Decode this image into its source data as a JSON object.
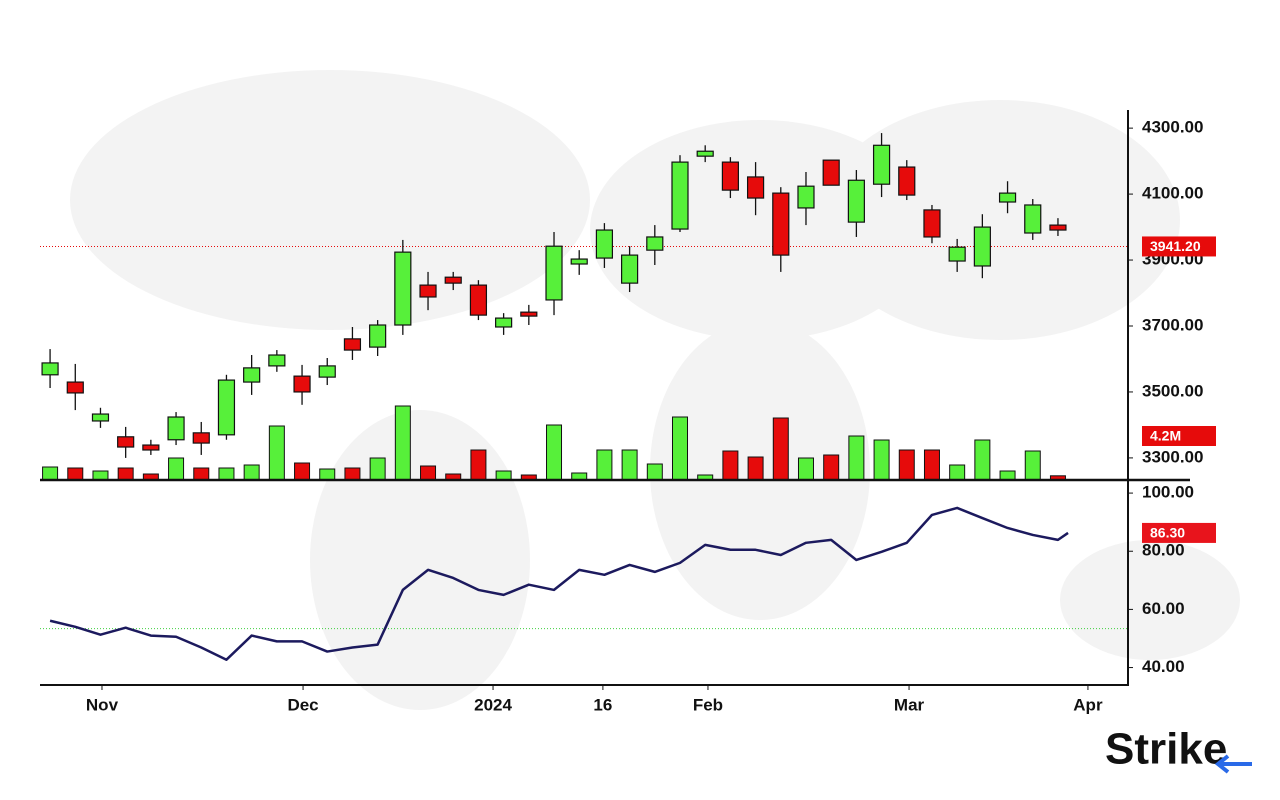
{
  "brand": "Strike",
  "chart_data": [
    {
      "type": "candlestick",
      "xlim": [
        -0.4,
        42.78
      ],
      "ylim": [
        3233,
        4355
      ],
      "yticks": [
        {
          "value": 3300,
          "label": "3300.00"
        },
        {
          "value": 3500,
          "label": "3500.00"
        },
        {
          "value": 3700,
          "label": "3700.00"
        },
        {
          "value": 3900,
          "label": "3900.00"
        },
        {
          "value": 4100,
          "label": "4100.00"
        },
        {
          "value": 4300,
          "label": "4300.00"
        }
      ],
      "up_color": "#57f03a",
      "down_color": "#e60b0b",
      "open": [
        3552,
        3530,
        3412,
        3364,
        3339,
        3355,
        3376,
        3370,
        3530,
        3579,
        3548,
        3545,
        3661,
        3636,
        3703,
        3824,
        3848,
        3824,
        3697,
        3742,
        3779,
        3888,
        3906,
        3830,
        3930,
        3994,
        4215,
        4197,
        4152,
        4103,
        4058,
        4203,
        4015,
        4130,
        4182,
        4052,
        3897,
        3882,
        4076,
        3982,
        4006
      ],
      "high": [
        3630,
        3585,
        3452,
        3394,
        3355,
        3439,
        3409,
        3552,
        3612,
        3627,
        3582,
        3603,
        3697,
        3718,
        3961,
        3864,
        3864,
        3839,
        3739,
        3764,
        3985,
        3930,
        4012,
        3942,
        4006,
        4218,
        4248,
        4212,
        4197,
        4121,
        4167,
        4203,
        4173,
        4285,
        4203,
        4067,
        3964,
        4039,
        4139,
        4085,
        4027
      ],
      "low": [
        3512,
        3445,
        3391,
        3300,
        3309,
        3339,
        3309,
        3355,
        3491,
        3561,
        3461,
        3521,
        3597,
        3609,
        3673,
        3748,
        3809,
        3718,
        3673,
        3703,
        3733,
        3855,
        3876,
        3803,
        3885,
        3985,
        4197,
        4088,
        4036,
        3864,
        4006,
        4127,
        3970,
        4091,
        4082,
        3951,
        3864,
        3845,
        4042,
        3961,
        3973
      ],
      "close": [
        3588,
        3497,
        3433,
        3333,
        3324,
        3424,
        3345,
        3536,
        3573,
        3612,
        3500,
        3579,
        3627,
        3703,
        3924,
        3788,
        3830,
        3733,
        3724,
        3730,
        3942,
        3903,
        3991,
        3915,
        3970,
        4197,
        4230,
        4112,
        4088,
        3915,
        4124,
        4127,
        4142,
        4248,
        4097,
        3970,
        3939,
        4000,
        4103,
        4067,
        3991
      ],
      "reference_line": {
        "value": 3941.2,
        "label": "3941.20",
        "color": "#e60b0b"
      },
      "volume": {
        "ylim": [
          0,
          80
        ],
        "values": [
          13,
          12,
          9,
          12,
          6,
          22,
          12,
          12,
          15,
          54,
          17,
          11,
          12,
          22,
          74,
          14,
          6,
          30,
          9,
          5,
          55,
          7,
          30,
          30,
          16,
          63,
          5,
          29,
          23,
          62,
          22,
          25,
          44,
          40,
          30,
          30,
          15,
          40,
          9,
          29,
          4.2
        ],
        "last_value_label": "4.2M"
      }
    },
    {
      "type": "line",
      "xlim": [
        -0.4,
        42.78
      ],
      "xticks": [
        {
          "value": 2.06,
          "label": "Nov"
        },
        {
          "value": 10.04,
          "label": "Dec"
        },
        {
          "value": 17.58,
          "label": "2024"
        },
        {
          "value": 21.94,
          "label": "16"
        },
        {
          "value": 26.11,
          "label": "Feb"
        },
        {
          "value": 34.09,
          "label": "Mar"
        },
        {
          "value": 41.19,
          "label": "Apr"
        }
      ],
      "ylim": [
        34,
        104.5
      ],
      "yticks": [
        {
          "value": 40,
          "label": "40.00"
        },
        {
          "value": 60,
          "label": "60.00"
        },
        {
          "value": 80,
          "label": "80.00"
        },
        {
          "value": 100,
          "label": "100.00"
        }
      ],
      "color": "#1c1a5e",
      "x": [
        0,
        1,
        2,
        3,
        4,
        5,
        6,
        7,
        8,
        9,
        10,
        11,
        12,
        13,
        14,
        15,
        16,
        17,
        18,
        19,
        20,
        21,
        22,
        23,
        24,
        25,
        26,
        27,
        28,
        29,
        30,
        31,
        32,
        33,
        34,
        35,
        36,
        37,
        38,
        39,
        40,
        40.4
      ],
      "values": [
        56.1,
        54,
        51.3,
        53.7,
        51,
        50.6,
        46.9,
        42.7,
        51,
        49,
        49,
        45.5,
        46.9,
        47.9,
        66.7,
        73.6,
        70.8,
        66.7,
        65,
        68.5,
        66.7,
        73.6,
        71.9,
        75.3,
        72.9,
        76,
        82.2,
        80.5,
        80.5,
        78.7,
        82.9,
        83.9,
        77,
        79.8,
        82.9,
        92.5,
        94.9,
        91.4,
        88,
        85.6,
        83.9,
        86.3
      ],
      "last_value_label": "86.30",
      "reference_line": {
        "value": 53.4,
        "color": "#3fcf3f"
      }
    }
  ]
}
